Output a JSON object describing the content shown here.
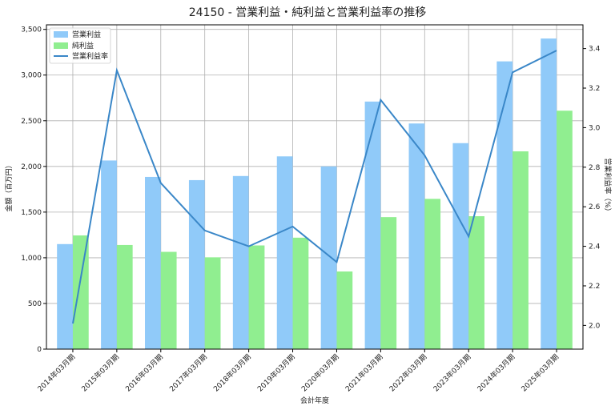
{
  "chart_data": {
    "type": "bar",
    "title": "24150 - 営業利益・純利益と営業利益率の推移",
    "xlabel": "会計年度",
    "ylabel": "金額（百万円）",
    "y2label": "営業利益率（%）",
    "categories": [
      "2014年03月期",
      "2015年03月期",
      "2016年03月期",
      "2017年03月期",
      "2018年03月期",
      "2019年03月期",
      "2020年03月期",
      "2021年03月期",
      "2022年03月期",
      "2023年03月期",
      "2024年03月期",
      "2025年03月期"
    ],
    "series": [
      {
        "name": "営業利益",
        "type": "bar",
        "color": "#90caf9",
        "values": [
          1150,
          2065,
          1885,
          1850,
          1895,
          2110,
          2000,
          2710,
          2470,
          2255,
          3150,
          3400
        ]
      },
      {
        "name": "純利益",
        "type": "bar",
        "color": "#90ee90",
        "values": [
          1245,
          1140,
          1065,
          1005,
          1135,
          1220,
          850,
          1445,
          1645,
          1455,
          2165,
          2610
        ]
      },
      {
        "name": "営業利益率",
        "type": "line",
        "color": "#3a87c8",
        "axis": "right",
        "values": [
          2.01,
          3.29,
          2.72,
          2.48,
          2.4,
          2.5,
          2.32,
          3.14,
          2.86,
          2.45,
          3.28,
          3.39
        ]
      }
    ],
    "ylim": [
      0,
      3550
    ],
    "yticks": [
      0,
      500,
      1000,
      1500,
      2000,
      2500,
      3000,
      3500
    ],
    "ytick_labels": [
      "0",
      "500",
      "1,000",
      "1,500",
      "2,000",
      "2,500",
      "3,000",
      "3,500"
    ],
    "y2lim": [
      1.88,
      3.52
    ],
    "y2ticks": [
      2.0,
      2.2,
      2.4,
      2.6,
      2.8,
      3.0,
      3.2,
      3.4
    ],
    "y2tick_labels": [
      "2.0",
      "2.2",
      "2.4",
      "2.6",
      "2.8",
      "3.0",
      "3.2",
      "3.4"
    ],
    "grid": true,
    "legend": "top-left"
  }
}
